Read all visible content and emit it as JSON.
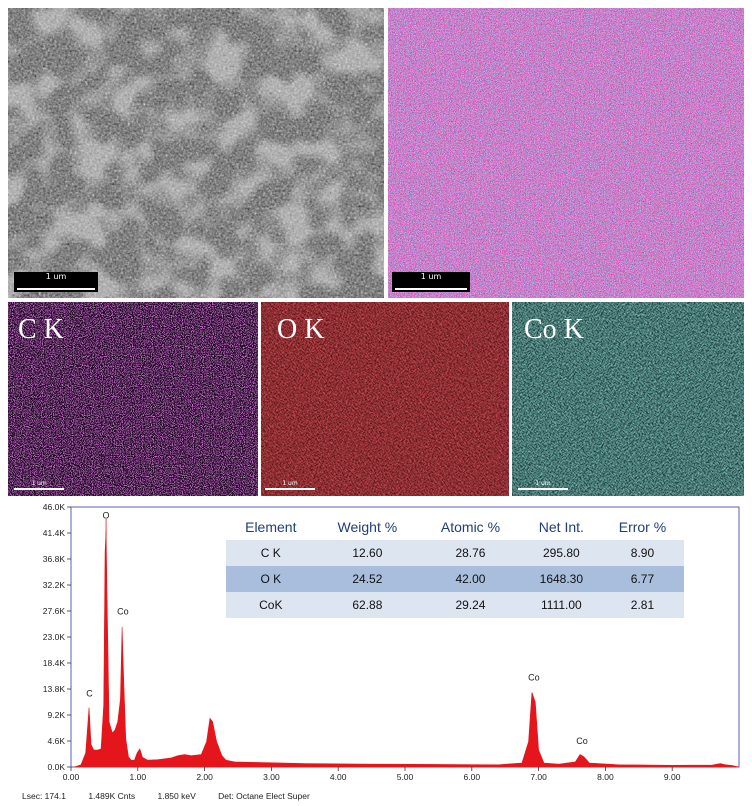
{
  "sem_panel": {
    "scale_label": "1 um"
  },
  "overlay_panel": {
    "scale_label": "1 um"
  },
  "maps": [
    {
      "label": "C K",
      "scale_label": "1 um",
      "color": "#8a2a8c",
      "bg": "#1c0620"
    },
    {
      "label": "O K",
      "scale_label": "1 um",
      "color": "#b51d20",
      "bg": "#3a0505"
    },
    {
      "label": "Co K",
      "scale_label": "1 um",
      "color": "#3fa8a0",
      "bg": "#0a2523"
    }
  ],
  "table": {
    "headers": [
      "Element",
      "Weight %",
      "Atomic %",
      "Net Int.",
      "Error %"
    ],
    "rows": [
      [
        "C K",
        "12.60",
        "28.76",
        "295.80",
        "8.90"
      ],
      [
        "O K",
        "24.52",
        "42.00",
        "1648.30",
        "6.77"
      ],
      [
        "CoK",
        "62.88",
        "29.24",
        "1111.00",
        "2.81"
      ]
    ]
  },
  "chart_data": {
    "type": "area",
    "xlim": [
      0,
      10
    ],
    "ylim": [
      0,
      46000
    ],
    "x_ticks": [
      "0.00",
      "1.00",
      "2.00",
      "3.00",
      "4.00",
      "5.00",
      "6.00",
      "7.00",
      "8.00",
      "9.00"
    ],
    "y_ticks": [
      "0.0K",
      "4.6K",
      "9.2K",
      "13.8K",
      "18.4K",
      "23.0K",
      "27.6K",
      "32.2K",
      "36.8K",
      "41.4K",
      "46.0K"
    ],
    "series_color": "#e4161c",
    "spectrum": [
      [
        0.05,
        0
      ],
      [
        0.15,
        400
      ],
      [
        0.22,
        2500
      ],
      [
        0.27,
        10500
      ],
      [
        0.3,
        4000
      ],
      [
        0.34,
        3000
      ],
      [
        0.4,
        3000
      ],
      [
        0.45,
        3200
      ],
      [
        0.49,
        11000
      ],
      [
        0.51,
        38000
      ],
      [
        0.525,
        42000
      ],
      [
        0.54,
        30000
      ],
      [
        0.57,
        8000
      ],
      [
        0.62,
        6000
      ],
      [
        0.66,
        6600
      ],
      [
        0.7,
        8000
      ],
      [
        0.74,
        12000
      ],
      [
        0.765,
        24800
      ],
      [
        0.79,
        15000
      ],
      [
        0.82,
        5000
      ],
      [
        0.86,
        1800
      ],
      [
        0.9,
        1200
      ],
      [
        0.95,
        1200
      ],
      [
        0.99,
        2500
      ],
      [
        1.03,
        3200
      ],
      [
        1.07,
        1700
      ],
      [
        1.15,
        1200
      ],
      [
        1.3,
        1300
      ],
      [
        1.5,
        1600
      ],
      [
        1.6,
        2000
      ],
      [
        1.7,
        2200
      ],
      [
        1.8,
        2000
      ],
      [
        1.95,
        2200
      ],
      [
        2.03,
        4500
      ],
      [
        2.08,
        8600
      ],
      [
        2.12,
        8000
      ],
      [
        2.18,
        4500
      ],
      [
        2.26,
        2000
      ],
      [
        2.32,
        1200
      ],
      [
        2.45,
        900
      ],
      [
        2.8,
        800
      ],
      [
        3.5,
        600
      ],
      [
        4.5,
        500
      ],
      [
        5.5,
        450
      ],
      [
        6.4,
        400
      ],
      [
        6.75,
        700
      ],
      [
        6.85,
        4500
      ],
      [
        6.9,
        13200
      ],
      [
        6.95,
        11500
      ],
      [
        7.0,
        3000
      ],
      [
        7.08,
        700
      ],
      [
        7.3,
        500
      ],
      [
        7.55,
        900
      ],
      [
        7.62,
        2200
      ],
      [
        7.68,
        1800
      ],
      [
        7.76,
        700
      ],
      [
        8.2,
        400
      ],
      [
        9.0,
        300
      ],
      [
        9.6,
        350
      ],
      [
        9.72,
        600
      ],
      [
        9.8,
        400
      ],
      [
        9.9,
        250
      ],
      [
        10.0,
        0
      ]
    ],
    "peak_labels": [
      {
        "text": "C",
        "x": 0.277,
        "y": 12500
      },
      {
        "text": "O",
        "x": 0.525,
        "y": 44000
      },
      {
        "text": "Co",
        "x": 0.776,
        "y": 27000
      },
      {
        "text": "Co",
        "x": 6.93,
        "y": 15300
      },
      {
        "text": "Co",
        "x": 7.65,
        "y": 4100
      }
    ]
  },
  "footer": {
    "lsec": "Lsec: 174.1",
    "cnts": "1.489K Cnts",
    "kev": "1.850 keV",
    "det": "Det: Octane Elect Super"
  }
}
